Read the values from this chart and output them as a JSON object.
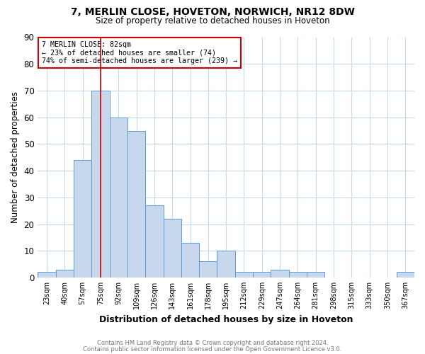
{
  "title1": "7, MERLIN CLOSE, HOVETON, NORWICH, NR12 8DW",
  "title2": "Size of property relative to detached houses in Hoveton",
  "xlabel": "Distribution of detached houses by size in Hoveton",
  "ylabel": "Number of detached properties",
  "bins": [
    "23sqm",
    "40sqm",
    "57sqm",
    "75sqm",
    "92sqm",
    "109sqm",
    "126sqm",
    "143sqm",
    "161sqm",
    "178sqm",
    "195sqm",
    "212sqm",
    "229sqm",
    "247sqm",
    "264sqm",
    "281sqm",
    "298sqm",
    "315sqm",
    "333sqm",
    "350sqm",
    "367sqm"
  ],
  "values": [
    2,
    3,
    44,
    70,
    60,
    55,
    27,
    22,
    13,
    6,
    10,
    2,
    2,
    3,
    2,
    2,
    0,
    0,
    0,
    0,
    2
  ],
  "bar_color": "#c8d8ec",
  "bar_edge_color": "#5b9bd5",
  "vline_x_index": 3,
  "vline_color": "#cc0000",
  "annotation_text": "7 MERLIN CLOSE: 82sqm\n← 23% of detached houses are smaller (74)\n74% of semi-detached houses are larger (239) →",
  "annotation_box_color": "white",
  "annotation_box_edge_color": "#cc0000",
  "ylim": [
    0,
    90
  ],
  "yticks": [
    0,
    10,
    20,
    30,
    40,
    50,
    60,
    70,
    80,
    90
  ],
  "footer1": "Contains HM Land Registry data © Crown copyright and database right 2024.",
  "footer2": "Contains public sector information licensed under the Open Government Licence v3.0.",
  "bg_color": "white",
  "grid_color": "#c8d8ec"
}
